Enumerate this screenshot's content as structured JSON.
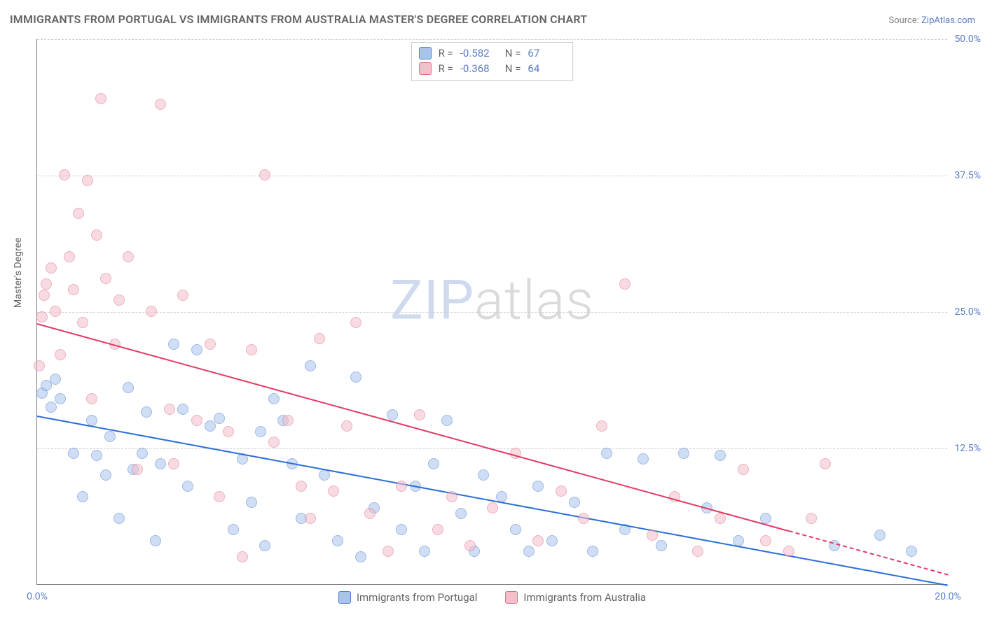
{
  "title": "IMMIGRANTS FROM PORTUGAL VS IMMIGRANTS FROM AUSTRALIA MASTER'S DEGREE CORRELATION CHART",
  "source_prefix": "Source: ",
  "source_link": "ZipAtlas.com",
  "ylabel": "Master's Degree",
  "watermark_a": "ZIP",
  "watermark_b": "atlas",
  "chart": {
    "type": "scatter",
    "background_color": "#ffffff",
    "grid_color": "#d0d0d0",
    "axis_color": "#808080",
    "xlim": [
      0,
      20
    ],
    "ylim": [
      0,
      50
    ],
    "x_ticks": [
      {
        "v": 0,
        "label": "0.0%"
      },
      {
        "v": 20,
        "label": "20.0%"
      }
    ],
    "y_ticks": [
      {
        "v": 12.5,
        "label": "12.5%"
      },
      {
        "v": 25.0,
        "label": "25.0%"
      },
      {
        "v": 37.5,
        "label": "37.5%"
      },
      {
        "v": 50.0,
        "label": "50.0%"
      }
    ],
    "marker_radius": 8,
    "marker_opacity": 0.55,
    "series": [
      {
        "key": "portugal",
        "legend_label": "Immigrants from Portugal",
        "fill": "#a9c4ec",
        "stroke": "#4f7fd1",
        "line_color": "#2c6fd6",
        "r_label": "R =",
        "r_value": "-0.582",
        "n_label": "N =",
        "n_value": "67",
        "trend": {
          "x1": 0,
          "y1": 15.5,
          "x2": 20,
          "y2": 0.0,
          "solid_until_x": 20
        },
        "points": [
          [
            0.1,
            17.5
          ],
          [
            0.2,
            18.2
          ],
          [
            0.3,
            16.2
          ],
          [
            0.4,
            18.8
          ],
          [
            0.5,
            17.0
          ],
          [
            0.8,
            12.0
          ],
          [
            1.0,
            8.0
          ],
          [
            1.2,
            15.0
          ],
          [
            1.3,
            11.8
          ],
          [
            1.5,
            10.0
          ],
          [
            1.6,
            13.5
          ],
          [
            1.8,
            6.0
          ],
          [
            2.0,
            18.0
          ],
          [
            2.1,
            10.5
          ],
          [
            2.3,
            12.0
          ],
          [
            2.4,
            15.8
          ],
          [
            2.6,
            4.0
          ],
          [
            2.7,
            11.0
          ],
          [
            3.0,
            22.0
          ],
          [
            3.2,
            16.0
          ],
          [
            3.3,
            9.0
          ],
          [
            3.5,
            21.5
          ],
          [
            3.8,
            14.5
          ],
          [
            4.0,
            15.2
          ],
          [
            4.3,
            5.0
          ],
          [
            4.5,
            11.5
          ],
          [
            4.7,
            7.5
          ],
          [
            4.9,
            14.0
          ],
          [
            5.0,
            3.5
          ],
          [
            5.2,
            17.0
          ],
          [
            5.4,
            15.0
          ],
          [
            5.6,
            11.0
          ],
          [
            5.8,
            6.0
          ],
          [
            6.0,
            20.0
          ],
          [
            6.3,
            10.0
          ],
          [
            6.6,
            4.0
          ],
          [
            7.0,
            19.0
          ],
          [
            7.1,
            2.5
          ],
          [
            7.4,
            7.0
          ],
          [
            7.8,
            15.5
          ],
          [
            8.0,
            5.0
          ],
          [
            8.3,
            9.0
          ],
          [
            8.5,
            3.0
          ],
          [
            8.7,
            11.0
          ],
          [
            9.0,
            15.0
          ],
          [
            9.3,
            6.5
          ],
          [
            9.6,
            3.0
          ],
          [
            9.8,
            10.0
          ],
          [
            10.2,
            8.0
          ],
          [
            10.5,
            5.0
          ],
          [
            10.8,
            3.0
          ],
          [
            11.0,
            9.0
          ],
          [
            11.3,
            4.0
          ],
          [
            11.8,
            7.5
          ],
          [
            12.2,
            3.0
          ],
          [
            12.5,
            12.0
          ],
          [
            12.9,
            5.0
          ],
          [
            13.3,
            11.5
          ],
          [
            13.7,
            3.5
          ],
          [
            14.2,
            12.0
          ],
          [
            14.7,
            7.0
          ],
          [
            15.0,
            11.8
          ],
          [
            15.4,
            4.0
          ],
          [
            16.0,
            6.0
          ],
          [
            17.5,
            3.5
          ],
          [
            18.5,
            4.5
          ],
          [
            19.2,
            3.0
          ]
        ]
      },
      {
        "key": "australia",
        "legend_label": "Immigrants from Australia",
        "fill": "#f3bfca",
        "stroke": "#e06f8c",
        "line_color": "#e23b67",
        "r_label": "R =",
        "r_value": "-0.368",
        "n_label": "N =",
        "n_value": "64",
        "trend": {
          "x1": 0,
          "y1": 24.0,
          "x2": 20,
          "y2": 1.0,
          "solid_until_x": 16.5
        },
        "points": [
          [
            0.05,
            20.0
          ],
          [
            0.1,
            24.5
          ],
          [
            0.15,
            26.5
          ],
          [
            0.2,
            27.5
          ],
          [
            0.3,
            29.0
          ],
          [
            0.4,
            25.0
          ],
          [
            0.5,
            21.0
          ],
          [
            0.6,
            37.5
          ],
          [
            0.7,
            30.0
          ],
          [
            0.8,
            27.0
          ],
          [
            0.9,
            34.0
          ],
          [
            1.0,
            24.0
          ],
          [
            1.1,
            37.0
          ],
          [
            1.2,
            17.0
          ],
          [
            1.3,
            32.0
          ],
          [
            1.4,
            44.5
          ],
          [
            1.5,
            28.0
          ],
          [
            1.7,
            22.0
          ],
          [
            1.8,
            26.0
          ],
          [
            2.0,
            30.0
          ],
          [
            2.2,
            10.5
          ],
          [
            2.5,
            25.0
          ],
          [
            2.7,
            44.0
          ],
          [
            2.9,
            16.0
          ],
          [
            3.0,
            11.0
          ],
          [
            3.2,
            26.5
          ],
          [
            3.5,
            15.0
          ],
          [
            3.8,
            22.0
          ],
          [
            4.0,
            8.0
          ],
          [
            4.2,
            14.0
          ],
          [
            4.5,
            2.5
          ],
          [
            4.7,
            21.5
          ],
          [
            5.0,
            37.5
          ],
          [
            5.2,
            13.0
          ],
          [
            5.5,
            15.0
          ],
          [
            5.8,
            9.0
          ],
          [
            6.0,
            6.0
          ],
          [
            6.2,
            22.5
          ],
          [
            6.5,
            8.5
          ],
          [
            6.8,
            14.5
          ],
          [
            7.0,
            24.0
          ],
          [
            7.3,
            6.5
          ],
          [
            7.7,
            3.0
          ],
          [
            8.0,
            9.0
          ],
          [
            8.4,
            15.5
          ],
          [
            8.8,
            5.0
          ],
          [
            9.1,
            8.0
          ],
          [
            9.5,
            3.5
          ],
          [
            10.0,
            7.0
          ],
          [
            10.5,
            12.0
          ],
          [
            11.0,
            4.0
          ],
          [
            11.5,
            8.5
          ],
          [
            12.0,
            6.0
          ],
          [
            12.4,
            14.5
          ],
          [
            12.9,
            27.5
          ],
          [
            13.5,
            4.5
          ],
          [
            14.0,
            8.0
          ],
          [
            14.5,
            3.0
          ],
          [
            15.0,
            6.0
          ],
          [
            15.5,
            10.5
          ],
          [
            16.0,
            4.0
          ],
          [
            16.5,
            3.0
          ],
          [
            17.0,
            6.0
          ],
          [
            17.3,
            11.0
          ]
        ]
      }
    ]
  }
}
